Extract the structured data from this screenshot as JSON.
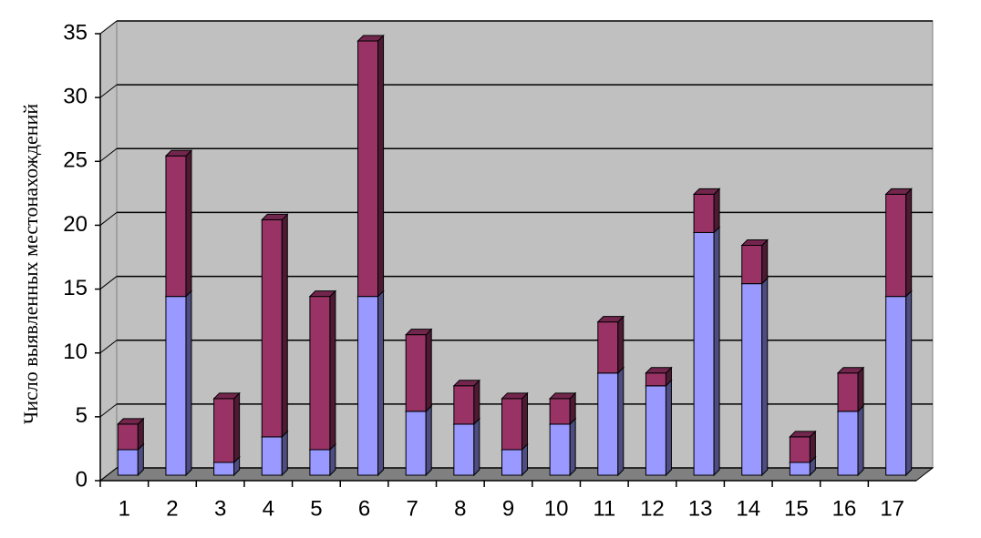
{
  "chart_data": {
    "type": "bar",
    "stacked": true,
    "three_d": true,
    "y_label": "Число выявленных местонахождений",
    "categories": [
      "1",
      "2",
      "3",
      "4",
      "5",
      "6",
      "7",
      "8",
      "9",
      "10",
      "11",
      "12",
      "13",
      "14",
      "15",
      "16",
      "17"
    ],
    "series": [
      {
        "color": "#9999ff",
        "values": [
          2,
          14,
          1,
          3,
          2,
          14,
          5,
          4,
          2,
          4,
          8,
          7,
          19,
          15,
          1,
          5,
          14
        ]
      },
      {
        "color": "#993366",
        "values": [
          2,
          11,
          5,
          17,
          12,
          20,
          6,
          3,
          4,
          2,
          4,
          1,
          3,
          3,
          2,
          3,
          8
        ]
      }
    ],
    "ylim": [
      0,
      35
    ],
    "yticks": [
      0,
      5,
      10,
      15,
      20,
      25,
      30,
      35
    ],
    "grid": true
  }
}
